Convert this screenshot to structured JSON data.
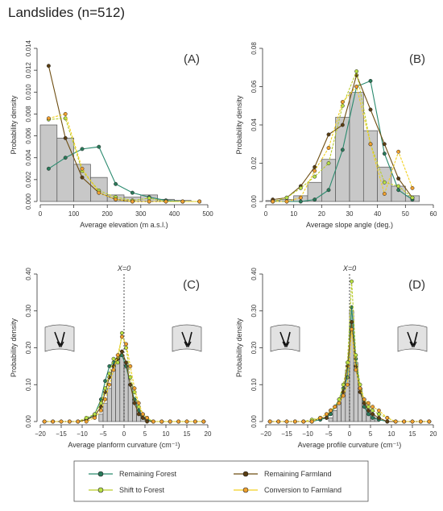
{
  "title": "Landslides (n=512)",
  "colors": {
    "bars": "#c8c8c8",
    "bar_edge": "#555555",
    "remaining_forest": "#2a8a6e",
    "remaining_farmland": "#6e4e12",
    "shift_to_forest": "#b9cc2a",
    "conversion_to_farmland": "#f2d020"
  },
  "legend": [
    {
      "key": "remaining_forest",
      "label": "Remaining Forest",
      "fill": "#2a7a5a",
      "line": "#2a8a6e"
    },
    {
      "key": "remaining_farmland",
      "label": "Remaining Farmland",
      "fill": "#5a3e12",
      "line": "#6e4e12"
    },
    {
      "key": "shift_to_forest",
      "label": "Shift to Forest",
      "fill": "#b8e046",
      "line": "#b9cc2a"
    },
    {
      "key": "conversion_to_farmland",
      "label": "Conversion to Farmland",
      "fill": "#f0a030",
      "line": "#f2d020"
    }
  ],
  "chart_data": [
    {
      "type": "bar",
      "panel": "(A)",
      "xlabel": "Average elevation (m a.s.l.)",
      "ylabel": "Probability density",
      "xlim": [
        0,
        500
      ],
      "ylim": [
        0,
        0.014
      ],
      "xticks": [
        "0",
        "100",
        "200",
        "300",
        "400",
        "500"
      ],
      "yticks": [
        "0.000",
        "0.002",
        "0.004",
        "0.006",
        "0.008",
        "0.010",
        "0.012",
        "0.014"
      ],
      "bins": [
        [
          0,
          50
        ],
        [
          50,
          100
        ],
        [
          100,
          150
        ],
        [
          150,
          200
        ],
        [
          200,
          250
        ],
        [
          250,
          300
        ],
        [
          300,
          350
        ],
        [
          350,
          400
        ],
        [
          400,
          450
        ],
        [
          450,
          500
        ]
      ],
      "values": [
        0.007,
        0.0058,
        0.0034,
        0.0022,
        0.0006,
        0.0004,
        0.0006,
        0.0002,
        0.0001,
        0
      ],
      "series": [
        {
          "name": "Remaining Forest",
          "x": [
            25,
            75,
            125,
            175,
            225,
            275,
            325,
            375,
            425,
            475
          ],
          "y": [
            0.003,
            0.004,
            0.0048,
            0.005,
            0.0016,
            0.0008,
            0.0004,
            0.0001,
            0.0,
            0.0
          ]
        },
        {
          "name": "Remaining Farmland",
          "x": [
            25,
            75,
            125,
            175,
            225,
            275,
            325,
            375,
            425,
            475
          ],
          "y": [
            0.0124,
            0.0058,
            0.0022,
            0.0008,
            0.0002,
            0.0,
            0.0,
            0.0,
            0.0,
            0.0
          ]
        },
        {
          "name": "Shift to Forest",
          "x": [
            25,
            75,
            125,
            175,
            225,
            275,
            325,
            375,
            425,
            475
          ],
          "y": [
            0.0075,
            0.0076,
            0.0028,
            0.001,
            0.0004,
            0.0001,
            0.0003,
            0.0,
            0.0,
            0.0
          ]
        },
        {
          "name": "Conversion to Farmland",
          "x": [
            25,
            75,
            125,
            175,
            225,
            275,
            325,
            375,
            425,
            475
          ],
          "y": [
            0.0076,
            0.008,
            0.003,
            0.0008,
            0.0002,
            0.0,
            0.0,
            0.0,
            0.0,
            0.0
          ]
        }
      ],
      "vline": null,
      "icons": null
    },
    {
      "type": "bar",
      "panel": "(B)",
      "xlabel": "Average slope angle (deg.)",
      "ylabel": "Probability density",
      "xlim": [
        0,
        60
      ],
      "ylim": [
        0,
        0.08
      ],
      "xticks": [
        "0",
        "10",
        "20",
        "30",
        "40",
        "50",
        "60"
      ],
      "yticks": [
        "0.00",
        "0.02",
        "0.04",
        "0.06",
        "0.08"
      ],
      "bins": [
        [
          0,
          5
        ],
        [
          5,
          10
        ],
        [
          10,
          15
        ],
        [
          15,
          20
        ],
        [
          20,
          25
        ],
        [
          25,
          30
        ],
        [
          30,
          35
        ],
        [
          35,
          40
        ],
        [
          40,
          45
        ],
        [
          45,
          50
        ],
        [
          50,
          55
        ],
        [
          55,
          60
        ]
      ],
      "values": [
        0.0005,
        0.001,
        0.003,
        0.01,
        0.022,
        0.044,
        0.057,
        0.037,
        0.018,
        0.008,
        0.003,
        0
      ],
      "series": [
        {
          "name": "Remaining Forest",
          "x": [
            2.5,
            7.5,
            12.5,
            17.5,
            22.5,
            27.5,
            32.5,
            37.5,
            42.5,
            47.5,
            52.5
          ],
          "y": [
            0.0,
            0.0,
            0.0,
            0.001,
            0.006,
            0.027,
            0.06,
            0.063,
            0.025,
            0.006,
            0.001
          ]
        },
        {
          "name": "Remaining Farmland",
          "x": [
            2.5,
            7.5,
            12.5,
            17.5,
            22.5,
            27.5,
            32.5,
            37.5,
            42.5,
            47.5,
            52.5
          ],
          "y": [
            0.001,
            0.002,
            0.008,
            0.018,
            0.035,
            0.04,
            0.066,
            0.048,
            0.03,
            0.012,
            0.002
          ]
        },
        {
          "name": "Shift to Forest",
          "x": [
            2.5,
            7.5,
            12.5,
            17.5,
            22.5,
            27.5,
            32.5,
            37.5,
            42.5,
            47.5,
            52.5
          ],
          "y": [
            0.0,
            0.002,
            0.007,
            0.013,
            0.02,
            0.05,
            0.068,
            0.03,
            0.01,
            0.008,
            0.002
          ]
        },
        {
          "name": "Conversion to Farmland",
          "x": [
            2.5,
            7.5,
            12.5,
            17.5,
            22.5,
            27.5,
            32.5,
            37.5,
            42.5,
            47.5,
            52.5
          ],
          "y": [
            0.0,
            0.0,
            0.002,
            0.016,
            0.028,
            0.052,
            0.06,
            0.03,
            0.004,
            0.026,
            0.007
          ]
        }
      ],
      "vline": null,
      "icons": null
    },
    {
      "type": "bar",
      "panel": "(C)",
      "xlabel": "Average planform curvature (cm⁻¹)",
      "ylabel": "Probability density",
      "xlim": [
        -20,
        20
      ],
      "ylim": [
        0,
        0.4
      ],
      "xticks": [
        "−20",
        "−15",
        "−10",
        "−5",
        "0",
        "5",
        "10",
        "15",
        "20"
      ],
      "yticks": [
        "0.00",
        "0.10",
        "0.20",
        "0.30",
        "0.40"
      ],
      "bins": [
        [
          -6,
          -5
        ],
        [
          -5,
          -4
        ],
        [
          -4,
          -3
        ],
        [
          -3,
          -2
        ],
        [
          -2,
          -1
        ],
        [
          -1,
          0
        ],
        [
          0,
          1
        ],
        [
          1,
          2
        ],
        [
          2,
          3
        ],
        [
          3,
          4
        ],
        [
          4,
          5
        ]
      ],
      "values": [
        0.02,
        0.05,
        0.09,
        0.14,
        0.17,
        0.18,
        0.16,
        0.1,
        0.06,
        0.03,
        0.01
      ],
      "series": [
        {
          "name": "Remaining Forest",
          "x": [
            -19,
            -17,
            -15,
            -13,
            -11,
            -9,
            -7,
            -5.5,
            -4.5,
            -3.5,
            -2.5,
            -1.5,
            -0.5,
            0.5,
            1.5,
            2.5,
            3.5,
            4.5,
            5.5,
            7,
            9,
            11,
            13,
            15,
            17,
            19
          ],
          "y": [
            0,
            0,
            0,
            0,
            0,
            0.005,
            0.02,
            0.06,
            0.11,
            0.15,
            0.16,
            0.17,
            0.18,
            0.15,
            0.1,
            0.06,
            0.03,
            0.01,
            0.005,
            0,
            0,
            0,
            0,
            0,
            0,
            0
          ]
        },
        {
          "name": "Remaining Farmland",
          "x": [
            -19,
            -17,
            -15,
            -13,
            -11,
            -9,
            -7,
            -5.5,
            -4.5,
            -3.5,
            -2.5,
            -1.5,
            -0.5,
            0.5,
            1.5,
            2.5,
            3.5,
            4.5,
            5.5,
            7,
            9,
            11,
            13,
            15,
            17,
            19
          ],
          "y": [
            0,
            0,
            0,
            0,
            0,
            0.005,
            0.015,
            0.04,
            0.08,
            0.12,
            0.15,
            0.17,
            0.19,
            0.16,
            0.1,
            0.05,
            0.02,
            0.01,
            0,
            0,
            0,
            0,
            0,
            0,
            0,
            0
          ]
        },
        {
          "name": "Shift to Forest",
          "x": [
            -19,
            -17,
            -15,
            -13,
            -11,
            -9,
            -7,
            -5.5,
            -4.5,
            -3.5,
            -2.5,
            -1.5,
            -0.5,
            0.5,
            1.5,
            2.5,
            3.5,
            4.5,
            5.5,
            7,
            9,
            11,
            13,
            15,
            17,
            19
          ],
          "y": [
            0,
            0,
            0,
            0,
            0,
            0.01,
            0.02,
            0.05,
            0.09,
            0.13,
            0.17,
            0.16,
            0.24,
            0.2,
            0.12,
            0.08,
            0.04,
            0.02,
            0.01,
            0,
            0,
            0,
            0,
            0,
            0,
            0
          ]
        },
        {
          "name": "Conversion to Farmland",
          "x": [
            -19,
            -17,
            -15,
            -13,
            -11,
            -9,
            -7,
            -5.5,
            -4.5,
            -3.5,
            -2.5,
            -1.5,
            -0.5,
            0.5,
            1.5,
            2.5,
            3.5,
            4.5,
            5.5,
            7,
            9,
            11,
            13,
            15,
            17,
            19
          ],
          "y": [
            0,
            0,
            0,
            0,
            0,
            0,
            0.01,
            0.03,
            0.06,
            0.1,
            0.14,
            0.18,
            0.23,
            0.21,
            0.15,
            0.09,
            0.05,
            0.02,
            0.01,
            0,
            0,
            0,
            0,
            0,
            0,
            0
          ]
        }
      ],
      "vline": {
        "x": 0,
        "label": "X=0"
      },
      "icons": [
        "convergent-slope-icon",
        "divergent-slope-icon"
      ]
    },
    {
      "type": "bar",
      "panel": "(D)",
      "xlabel": "Average profile curvature (cm⁻¹)",
      "ylabel": "Probability density",
      "xlim": [
        -20,
        20
      ],
      "ylim": [
        0,
        0.4
      ],
      "xticks": [
        "−20",
        "−15",
        "−10",
        "−5",
        "0",
        "5",
        "10",
        "15",
        "20"
      ],
      "yticks": [
        "0.00",
        "0.10",
        "0.20",
        "0.30",
        "0.40"
      ],
      "bins": [
        [
          -5,
          -4
        ],
        [
          -4,
          -3
        ],
        [
          -3,
          -2
        ],
        [
          -2,
          -1
        ],
        [
          -1,
          0
        ],
        [
          0,
          1
        ],
        [
          1,
          2
        ],
        [
          2,
          3
        ],
        [
          3,
          4
        ],
        [
          4,
          5
        ],
        [
          5,
          6
        ],
        [
          6,
          7
        ]
      ],
      "values": [
        0.01,
        0.03,
        0.05,
        0.08,
        0.14,
        0.3,
        0.16,
        0.09,
        0.05,
        0.03,
        0.02,
        0.01
      ],
      "series": [
        {
          "name": "Remaining Forest",
          "x": [
            -19,
            -17,
            -15,
            -13,
            -11,
            -9,
            -7,
            -5.5,
            -4.5,
            -3.5,
            -2.5,
            -1.5,
            -0.5,
            0.5,
            1.5,
            2.5,
            3.5,
            4.5,
            5.5,
            7,
            9,
            11,
            13,
            15,
            17,
            19
          ],
          "y": [
            0,
            0,
            0,
            0,
            0,
            0,
            0.005,
            0.01,
            0.02,
            0.04,
            0.06,
            0.09,
            0.12,
            0.31,
            0.17,
            0.09,
            0.04,
            0.02,
            0.01,
            0.005,
            0,
            0,
            0,
            0,
            0,
            0
          ]
        },
        {
          "name": "Remaining Farmland",
          "x": [
            -19,
            -17,
            -15,
            -13,
            -11,
            -9,
            -7,
            -5.5,
            -4.5,
            -3.5,
            -2.5,
            -1.5,
            -0.5,
            0.5,
            1.5,
            2.5,
            3.5,
            4.5,
            5.5,
            7,
            9,
            11,
            13,
            15,
            17,
            19
          ],
          "y": [
            0,
            0,
            0,
            0,
            0,
            0,
            0.01,
            0.01,
            0.03,
            0.04,
            0.05,
            0.08,
            0.15,
            0.27,
            0.15,
            0.08,
            0.05,
            0.03,
            0.02,
            0.01,
            0,
            0,
            0,
            0,
            0,
            0
          ]
        },
        {
          "name": "Shift to Forest",
          "x": [
            -19,
            -17,
            -15,
            -13,
            -11,
            -9,
            -7,
            -5.5,
            -4.5,
            -3.5,
            -2.5,
            -1.5,
            -0.5,
            0.5,
            1.5,
            2.5,
            3.5,
            4.5,
            5.5,
            7,
            9,
            11,
            13,
            15,
            17,
            19
          ],
          "y": [
            0,
            0,
            0,
            0,
            0,
            0.005,
            0.01,
            0.02,
            0.03,
            0.04,
            0.06,
            0.1,
            0.16,
            0.38,
            0.18,
            0.1,
            0.06,
            0.04,
            0.03,
            0.02,
            0.01,
            0,
            0,
            0,
            0,
            0
          ]
        },
        {
          "name": "Conversion to Farmland",
          "x": [
            -19,
            -17,
            -15,
            -13,
            -11,
            -9,
            -7,
            -5.5,
            -4.5,
            -3.5,
            -2.5,
            -1.5,
            -0.5,
            0.5,
            1.5,
            2.5,
            3.5,
            4.5,
            5.5,
            7,
            9,
            11,
            13,
            15,
            17,
            19
          ],
          "y": [
            0,
            0,
            0,
            0,
            0,
            0,
            0.01,
            0.02,
            0.03,
            0.04,
            0.05,
            0.07,
            0.1,
            0.25,
            0.14,
            0.09,
            0.06,
            0.05,
            0.04,
            0.03,
            0.01,
            0,
            0,
            0,
            0,
            0
          ]
        }
      ],
      "vline": {
        "x": 0,
        "label": "X=0"
      },
      "icons": [
        "straight-slope-icon",
        "concave-slope-icon"
      ]
    }
  ]
}
